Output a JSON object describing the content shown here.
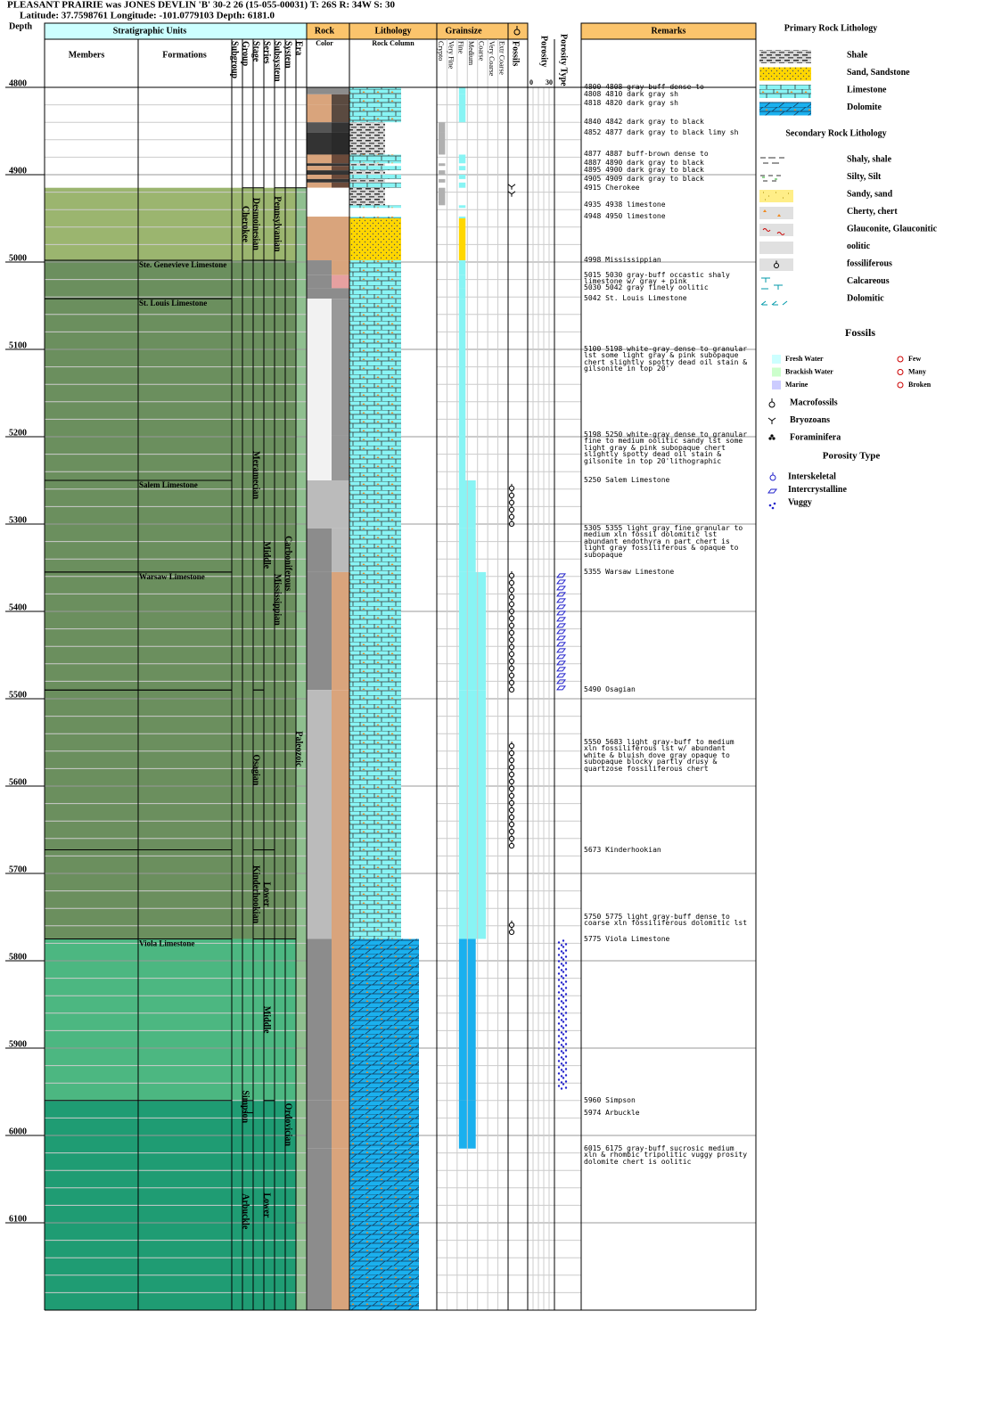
{
  "header": {
    "title": "PLEASANT PRAIRIE was JONES DEVLIN 'B' 30-2 26 (15-055-00031) T: 26S R: 34W S: 30",
    "location": "Latitude: 37.7598761 Longitude: -101.0779103 Depth: 6181.0"
  },
  "columns": {
    "depth": "Depth",
    "strat": "Stratigraphic Units",
    "members": "Members",
    "formations": "Formations",
    "subgroup": "Subgroup",
    "group": "Group",
    "stage": "Stage",
    "series": "Series",
    "subsystem": "Subsystem",
    "system": "System",
    "era": "Era",
    "rock": "Rock",
    "rock_color": "Color",
    "lithology": "Lithology",
    "rock_column": "Rock Column",
    "grainsize": "Grainsize",
    "fossils": "Fossils",
    "porosity": "Porosity",
    "porosity_type": "Porosity Type",
    "remarks": "Remarks"
  },
  "grain_classes": [
    "Crypto",
    "Very Fine",
    "Fine",
    "Medium",
    "Coarse",
    "Very Coarse",
    "Extr Coarse"
  ],
  "porosity_scale": [
    0,
    30
  ],
  "depth_range": [
    4800,
    6200
  ],
  "depth_ticks": [
    4800,
    4900,
    5000,
    5100,
    5200,
    5300,
    5400,
    5500,
    5600,
    5700,
    5800,
    5900,
    6000,
    6100
  ],
  "bands": [
    {
      "top": 4915,
      "base": 4998,
      "color": "#9bb56f"
    },
    {
      "top": 4998,
      "base": 5775,
      "color": "#6b8f5e"
    },
    {
      "top": 5775,
      "base": 5960,
      "color": "#4cb781"
    },
    {
      "top": 5960,
      "base": 6200,
      "color": "#1f9c73"
    }
  ],
  "strat": {
    "formations": [
      {
        "label": "Ste. Genevieve Limestone",
        "top": 4998,
        "base": 5042
      },
      {
        "label": "St. Louis Limestone",
        "top": 5042,
        "base": 5250
      },
      {
        "label": "Salem Limestone",
        "top": 5250,
        "base": 5355
      },
      {
        "label": "Warsaw Limestone",
        "top": 5355,
        "base": 5490
      },
      {
        "label": null,
        "top": 5490,
        "base": 5673
      },
      {
        "label": null,
        "top": 5673,
        "base": 5775
      },
      {
        "label": "Viola Limestone",
        "top": 5775,
        "base": 5960
      }
    ],
    "group": [
      {
        "label": "Cherokee",
        "top": 4915,
        "base": 4998
      },
      {
        "label": "Simpson",
        "top": 5960,
        "base": 5974
      },
      {
        "label": "Arbuckle",
        "top": 5974,
        "base": 6200
      }
    ],
    "stage": [
      {
        "label": "Desmoinesian",
        "top": 4915,
        "base": 4998
      },
      {
        "label": "Meramecian",
        "top": 4998,
        "base": 5490
      },
      {
        "label": "Osagian",
        "top": 5490,
        "base": 5673
      },
      {
        "label": "Kinderhookian",
        "top": 5673,
        "base": 5775
      }
    ],
    "series": [
      {
        "label": "Middle",
        "top": 4998,
        "base": 5673
      },
      {
        "label": "Lower",
        "top": 5673,
        "base": 5775
      },
      {
        "label": "Middle",
        "top": 5775,
        "base": 5960
      },
      {
        "label": "Lower",
        "top": 5960,
        "base": 6200
      }
    ],
    "subsystem": [
      {
        "label": "Pennsylvanian",
        "top": 4915,
        "base": 4998
      },
      {
        "label": "Mississippian",
        "top": 4998,
        "base": 5775
      }
    ],
    "system": [
      {
        "label": "Carboniferous",
        "top": 4915,
        "base": 5775
      },
      {
        "label": "Ordovician",
        "top": 5775,
        "base": 6200
      }
    ],
    "era": [
      {
        "label": "Paleozoic",
        "top": 4915,
        "base": 6200
      }
    ]
  },
  "lithology": [
    {
      "top": 4800,
      "base": 4808,
      "rock": "Limestone",
      "colors": [
        "#8c8c8c",
        "#8c8c8c"
      ],
      "grain": "Fine"
    },
    {
      "top": 4808,
      "base": 4820,
      "rock": "Limestone",
      "colors": [
        "#d9a47c",
        "#5a4a40"
      ],
      "grain": "Fine"
    },
    {
      "top": 4820,
      "base": 4840,
      "rock": "Limestone",
      "colors": [
        "#d9a47c",
        "#5a4a40"
      ],
      "grain": "Fine"
    },
    {
      "top": 4840,
      "base": 4852,
      "rock": "Shale",
      "colors": [
        "#555555",
        "#333333"
      ],
      "grain": "Crypto"
    },
    {
      "top": 4852,
      "base": 4877,
      "rock": "Shale",
      "colors": [
        "#333333",
        "#2a2a2a"
      ],
      "grain": "Crypto"
    },
    {
      "top": 4877,
      "base": 4887,
      "rock": "Limestone",
      "colors": [
        "#d9a47c",
        "#6b4a3a"
      ],
      "grain": "Fine"
    },
    {
      "top": 4887,
      "base": 4890,
      "rock": "Shale",
      "colors": [
        "#333333",
        "#333333"
      ],
      "grain": "Crypto"
    },
    {
      "top": 4890,
      "base": 4895,
      "rock": "Limestone",
      "colors": [
        "#d9a47c",
        "#6b4a3a"
      ],
      "grain": "Fine"
    },
    {
      "top": 4895,
      "base": 4900,
      "rock": "Shale",
      "colors": [
        "#333333",
        "#333333"
      ],
      "grain": "Crypto"
    },
    {
      "top": 4900,
      "base": 4905,
      "rock": "Limestone",
      "colors": [
        "#d9a47c",
        "#6b4a3a"
      ],
      "grain": "Fine"
    },
    {
      "top": 4905,
      "base": 4909,
      "rock": "Shale",
      "colors": [
        "#333333",
        "#333333"
      ],
      "grain": "Crypto"
    },
    {
      "top": 4909,
      "base": 4915,
      "rock": "Limestone",
      "colors": [
        "#d9a47c",
        "#6b4a3a"
      ],
      "grain": "Fine"
    },
    {
      "top": 4915,
      "base": 4935,
      "rock": "Shale",
      "colors": [
        "#ffffff",
        "#ffffff"
      ],
      "grain": "Crypto"
    },
    {
      "top": 4935,
      "base": 4938,
      "rock": "Limestone",
      "colors": [
        "#ffffff",
        "#ffffff"
      ],
      "grain": "Fine"
    },
    {
      "top": 4948,
      "base": 4950,
      "rock": "Limestone",
      "colors": [
        "#d9a47c",
        "#d9a47c"
      ],
      "grain": "Fine"
    },
    {
      "top": 4950,
      "base": 4998,
      "rock": "Sand, Sandstone",
      "colors": [
        "#d9a47c",
        "#d9a47c"
      ],
      "grain": "Fine"
    },
    {
      "top": 4998,
      "base": 5015,
      "rock": "Limestone",
      "colors": [
        "#8c8c8c",
        "#d9a47c"
      ],
      "grain": "Fine"
    },
    {
      "top": 5015,
      "base": 5030,
      "rock": "Limestone",
      "colors": [
        "#8c8c8c",
        "#e6a0a0"
      ],
      "grain": "Fine"
    },
    {
      "top": 5030,
      "base": 5042,
      "rock": "Limestone",
      "colors": [
        "#8c8c8c",
        "#8c8c8c"
      ],
      "grain": "Fine"
    },
    {
      "top": 5042,
      "base": 5198,
      "rock": "Limestone",
      "colors": [
        "#f2f2f2",
        "#999999"
      ],
      "grain": "Fine"
    },
    {
      "top": 5198,
      "base": 5250,
      "rock": "Limestone",
      "colors": [
        "#f2f2f2",
        "#999999"
      ],
      "grain": "Fine"
    },
    {
      "top": 5250,
      "base": 5305,
      "rock": "Limestone",
      "colors": [
        "#bbbbbb",
        "#bbbbbb"
      ],
      "grain": "Medium"
    },
    {
      "top": 5305,
      "base": 5355,
      "rock": "Limestone",
      "colors": [
        "#8c8c8c",
        "#bbbbbb"
      ],
      "grain": "Medium"
    },
    {
      "top": 5355,
      "base": 5490,
      "rock": "Limestone",
      "colors": [
        "#8c8c8c",
        "#d9a47c"
      ],
      "grain": "Coarse"
    },
    {
      "top": 5490,
      "base": 5775,
      "rock": "Limestone",
      "colors": [
        "#bbbbbb",
        "#d9a47c"
      ],
      "grain": "Coarse"
    },
    {
      "top": 5775,
      "base": 5960,
      "rock": "Dolomite",
      "colors": [
        "#8c8c8c",
        "#d9a47c"
      ],
      "grain": "Medium"
    },
    {
      "top": 5960,
      "base": 6015,
      "rock": "Dolomite",
      "colors": [
        "#8c8c8c",
        "#d9a47c"
      ],
      "grain": "Medium"
    },
    {
      "top": 6015,
      "base": 6200,
      "rock": "Dolomite",
      "colors": [
        "#8c8c8c",
        "#d9a47c"
      ],
      "grain": null
    }
  ],
  "fossils": [
    {
      "top": 4910,
      "base": 4925,
      "kind": "Bryozoans"
    },
    {
      "top": 5255,
      "base": 5300,
      "kind": "Macrofossils"
    },
    {
      "top": 5355,
      "base": 5490,
      "kind": "Macrofossils"
    },
    {
      "top": 5550,
      "base": 5673,
      "kind": "Macrofossils"
    },
    {
      "top": 5755,
      "base": 5768,
      "kind": "Macrofossils"
    }
  ],
  "porosity_types": [
    {
      "top": 5355,
      "base": 5490,
      "kind": "Intercrystalline"
    },
    {
      "top": 5775,
      "base": 5950,
      "kind": "Vuggy"
    }
  ],
  "remarks": [
    {
      "depth": 4800,
      "text": "4800 4808 gray-buff dense to"
    },
    {
      "depth": 4808,
      "text": "4808 4810 dark gray sh"
    },
    {
      "depth": 4818,
      "text": "4818 4820 dark gray sh"
    },
    {
      "depth": 4840,
      "text": "4840 4842 dark gray to black"
    },
    {
      "depth": 4852,
      "text": "4852 4877 dark gray to black limy sh"
    },
    {
      "depth": 4877,
      "text": "4877 4887 buff-brown dense to"
    },
    {
      "depth": 4887,
      "text": "4887 4890 dark gray to black"
    },
    {
      "depth": 4895,
      "text": "4895 4900 dark gray to black"
    },
    {
      "depth": 4905,
      "text": "4905 4909 dark gray to black"
    },
    {
      "depth": 4915,
      "text": "4915 Cherokee"
    },
    {
      "depth": 4935,
      "text": "4935 4938 limestone"
    },
    {
      "depth": 4948,
      "text": "4948 4950 limestone"
    },
    {
      "depth": 4998,
      "text": "4998 Mississippian"
    },
    {
      "depth": 5015,
      "text": "5015 5030 gray-buff occastic shaly limestone w/ gray + pink"
    },
    {
      "depth": 5030,
      "text": "5030 5042 gray finely oolitic"
    },
    {
      "depth": 5042,
      "text": "5042 St. Louis Limestone"
    },
    {
      "depth": 5100,
      "text": "5100 5198 white-gray dense to granular lst some light gray & pink subopaque chert slightly spotty dead oil stain & gilsonite in top 20'"
    },
    {
      "depth": 5198,
      "text": "5198 5250 white-gray dense to granular fine to medium oolitic sandy lst some light gray & pink subopaque chert slightly spotty dead oil stain & gilsonite in top 20'lithographic"
    },
    {
      "depth": 5250,
      "text": "5250 Salem Limestone"
    },
    {
      "depth": 5305,
      "text": "5305 5355 light gray fine granular to medium xln fossil dolomitic lst abundant endothyra n part chert is light gray fossiliferous & opaque to subopaque"
    },
    {
      "depth": 5355,
      "text": "5355 Warsaw Limestone"
    },
    {
      "depth": 5490,
      "text": "5490 Osagian"
    },
    {
      "depth": 5550,
      "text": "5550 5683 light gray-buff to medium xln fossiliferous lst w/ abundant white & bluish dove gray opaque to subopaque blocky partly drusy & quartzose fossiliferous chert"
    },
    {
      "depth": 5673,
      "text": "5673 Kinderhookian"
    },
    {
      "depth": 5750,
      "text": "5750 5775 light gray-buff dense to coarse xln fossiliferous dolomitic lst"
    },
    {
      "depth": 5775,
      "text": "5775 Viola Limestone"
    },
    {
      "depth": 5960,
      "text": "5960 Simpson"
    },
    {
      "depth": 5974,
      "text": "5974 Arbuckle"
    },
    {
      "depth": 6015,
      "text": "6015 6175 gray-buff sucrosic medium xln & rhombic tripolitic vuggy prosity dolomite chert is oolitic"
    }
  ],
  "legend": {
    "primary_title": "Primary Rock Lithology",
    "primary": [
      {
        "name": "Shale",
        "color": "#b0b0b0"
      },
      {
        "name": "Sand, Sandstone",
        "color": "#ffd700"
      },
      {
        "name": "Limestone",
        "color": "#88f4f4"
      },
      {
        "name": "Dolomite",
        "color": "#1ab0ee"
      }
    ],
    "secondary_title": "Secondary Rock Lithology",
    "secondary": [
      "Shaly, shale",
      "Silty, Silt",
      "Sandy, sand",
      "Cherty, chert",
      "Glauconite, Glauconitic",
      "oolitic",
      "fossiliferous",
      "Calcareous",
      "Dolomitic"
    ],
    "fossils_title": "Fossils",
    "environments": [
      {
        "name": "Fresh Water",
        "color": "#ccffff"
      },
      {
        "name": "Brackish Water",
        "color": "#ccffcc"
      },
      {
        "name": "Marine",
        "color": "#ccccff"
      }
    ],
    "abundance": [
      "Few",
      "Many",
      "Broken"
    ],
    "fossil_kinds": [
      "Macrofossils",
      "Bryozoans",
      "Foraminifera"
    ],
    "porosity_title": "Porosity Type",
    "porosity_kinds": [
      "Interskeletal",
      "Intercrystalline",
      "Vuggy"
    ]
  }
}
